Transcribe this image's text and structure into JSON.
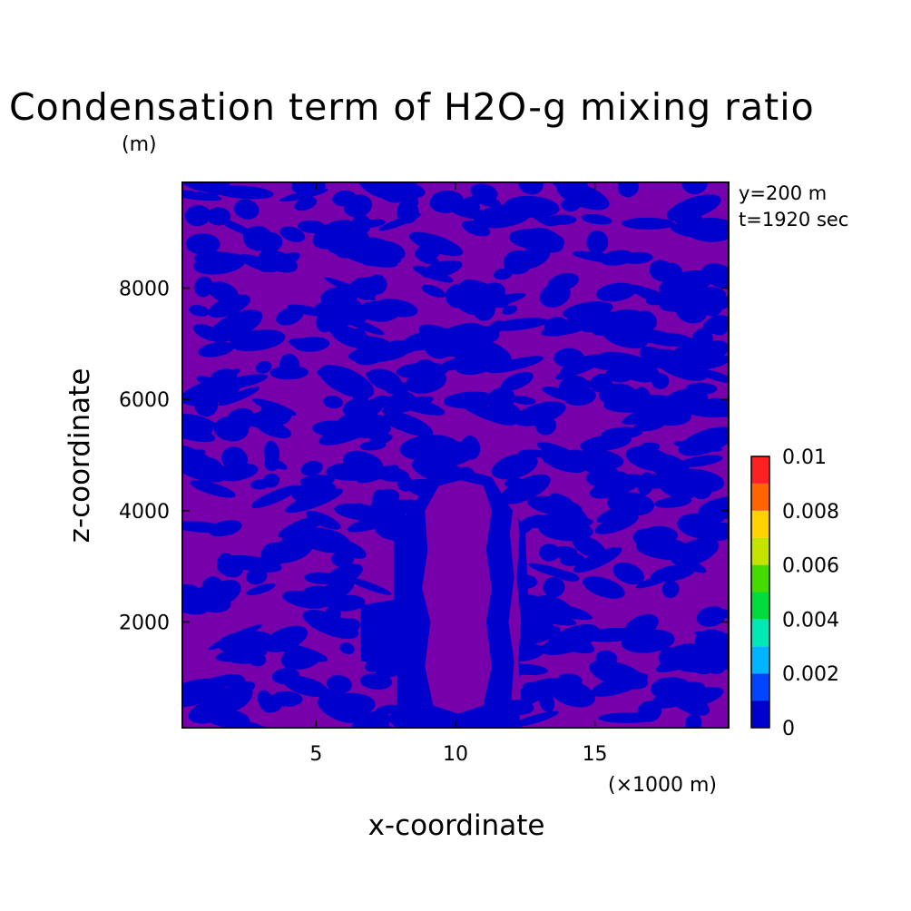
{
  "chart_data": {
    "type": "heatmap",
    "title": "Condensation term of H2O-g mixing ratio",
    "ylabel_unit": "(m)",
    "xlabel": "x-coordinate",
    "ylabel": "z-coordinate",
    "x_unit_label": "(×1000 m)",
    "annotations": [
      "y=200 m",
      "t=1920 sec"
    ],
    "x_range": [
      0.2,
      19.8
    ],
    "y_range": [
      100,
      9900
    ],
    "x_ticks": [
      {
        "value": 5,
        "label": "5"
      },
      {
        "value": 10,
        "label": "10"
      },
      {
        "value": 15,
        "label": "15"
      }
    ],
    "y_ticks": [
      {
        "value": 2000,
        "label": "2000"
      },
      {
        "value": 4000,
        "label": "4000"
      },
      {
        "value": 6000,
        "label": "6000"
      },
      {
        "value": 8000,
        "label": "8000"
      }
    ],
    "colorbar": {
      "levels": [
        0,
        0.001,
        0.002,
        0.003,
        0.004,
        0.005,
        0.006,
        0.007,
        0.008,
        0.009,
        0.01
      ],
      "colors": [
        "#0000cc",
        "#0044ff",
        "#00b4ff",
        "#00e8b4",
        "#00dc3c",
        "#44dc00",
        "#c4e400",
        "#ffd200",
        "#ff6400",
        "#ff2020"
      ],
      "tick_labels": [
        {
          "value": 0,
          "label": "0"
        },
        {
          "value": 0.002,
          "label": "0.002"
        },
        {
          "value": 0.004,
          "label": "0.004"
        },
        {
          "value": 0.006,
          "label": "0.006"
        },
        {
          "value": 0.008,
          "label": "0.008"
        },
        {
          "value": 0.01,
          "label": "0.01"
        }
      ]
    },
    "field_colors": {
      "background": "#7700aa",
      "lowest_band": "#0000cc"
    }
  }
}
